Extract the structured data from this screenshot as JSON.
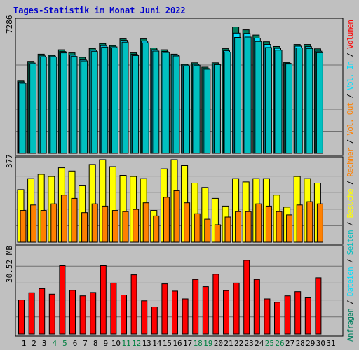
{
  "title": "Tages-Statistik im Monat Juni 2022",
  "colors": {
    "background": "#c0c0c0",
    "title": "#0000cc",
    "frame_dark": "#808080",
    "frame_light": "#ffffff",
    "grid": "#707070",
    "bar_outline": "#000000",
    "anfragen": "#008060",
    "dateien": "#00e0ff",
    "seiten": "#00c0c0",
    "besuche": "#ffff00",
    "rechner": "#ff8000",
    "volumen": "#ff0000",
    "weekend_label": "#008040",
    "weekday_label": "#000000"
  },
  "chart_data": [
    {
      "type": "bar",
      "panel": "top",
      "max_label": "7286",
      "ylim": [
        0,
        7286
      ],
      "x": [
        1,
        2,
        3,
        4,
        5,
        6,
        7,
        8,
        9,
        10,
        11,
        12,
        13,
        14,
        15,
        16,
        17,
        18,
        19,
        20,
        21,
        22,
        23,
        24,
        25,
        26,
        27,
        28,
        29,
        30,
        31
      ],
      "series": [
        {
          "name": "Anfragen",
          "color_key": "anfragen",
          "values": [
            3980,
            5060,
            5460,
            5400,
            5700,
            5530,
            5280,
            5770,
            6040,
            5930,
            6300,
            5530,
            6300,
            5800,
            5700,
            5460,
            4910,
            4980,
            4740,
            4980,
            5760,
            6960,
            6800,
            6510,
            6140,
            5880,
            5000,
            5990,
            5990,
            5750,
            0
          ]
        },
        {
          "name": "Dateien",
          "color_key": "dateien",
          "values": [
            3920,
            4970,
            5360,
            5350,
            5600,
            5400,
            5150,
            5670,
            5930,
            5860,
            6220,
            5450,
            6180,
            5700,
            5610,
            5410,
            4860,
            4900,
            4670,
            4920,
            5640,
            6620,
            6600,
            6340,
            5990,
            5780,
            4950,
            5900,
            5870,
            5620,
            0
          ]
        },
        {
          "name": "Seiten",
          "color_key": "seiten",
          "values": [
            3860,
            4920,
            5300,
            5300,
            5530,
            5330,
            5090,
            5600,
            5850,
            5800,
            6120,
            5380,
            6080,
            5630,
            5550,
            5360,
            4810,
            4850,
            4630,
            4880,
            5570,
            6380,
            6400,
            6160,
            5820,
            5680,
            4910,
            5800,
            5770,
            5540,
            0
          ]
        }
      ]
    },
    {
      "type": "bar",
      "panel": "middle",
      "max_label": "377",
      "ylim": [
        0,
        377
      ],
      "x": [
        1,
        2,
        3,
        4,
        5,
        6,
        7,
        8,
        9,
        10,
        11,
        12,
        13,
        14,
        15,
        16,
        17,
        18,
        19,
        20,
        21,
        22,
        23,
        24,
        25,
        26,
        27,
        28,
        29,
        30,
        31
      ],
      "series": [
        {
          "name": "Besuche",
          "color_key": "besuche",
          "values": [
            240,
            290,
            310,
            300,
            340,
            325,
            260,
            355,
            377,
            345,
            305,
            300,
            290,
            145,
            335,
            377,
            350,
            270,
            250,
            200,
            165,
            290,
            275,
            290,
            290,
            215,
            160,
            300,
            290,
            270,
            0
          ]
        },
        {
          "name": "Rechner",
          "color_key": "rechner",
          "values": [
            145,
            170,
            145,
            175,
            215,
            200,
            135,
            175,
            165,
            145,
            140,
            150,
            180,
            120,
            205,
            235,
            180,
            130,
            105,
            80,
            115,
            140,
            140,
            175,
            165,
            140,
            125,
            170,
            185,
            175,
            0
          ]
        }
      ]
    },
    {
      "type": "bar",
      "panel": "bottom",
      "max_label": "30.52 MB",
      "unit": "MB",
      "ylim": [
        0,
        30.52
      ],
      "x": [
        1,
        2,
        3,
        4,
        5,
        6,
        7,
        8,
        9,
        10,
        11,
        12,
        13,
        14,
        15,
        16,
        17,
        18,
        19,
        20,
        21,
        22,
        23,
        24,
        25,
        26,
        27,
        28,
        29,
        30,
        31
      ],
      "series": [
        {
          "name": "Volumen",
          "color_key": "volumen",
          "values": [
            12.2,
            14.8,
            16.3,
            14.3,
            24.6,
            15.7,
            13.7,
            14.9,
            24.6,
            18.3,
            14.0,
            21.3,
            11.9,
            9.7,
            18.0,
            15.4,
            12.6,
            19.6,
            17.0,
            21.5,
            15.6,
            18.3,
            26.5,
            19.6,
            12.6,
            11.4,
            13.7,
            15.2,
            13.0,
            20.2,
            0
          ]
        }
      ]
    }
  ],
  "legend_right": [
    {
      "text": "Anfragen",
      "color_key": "anfragen"
    },
    {
      "text": " / ",
      "color_key": "weekday_label"
    },
    {
      "text": "Dateien",
      "color_key": "dateien"
    },
    {
      "text": " / ",
      "color_key": "weekday_label"
    },
    {
      "text": "Seiten",
      "color_key": "seiten"
    },
    {
      "text": " / ",
      "color_key": "weekday_label"
    },
    {
      "text": "Besuche",
      "color_key": "besuche"
    },
    {
      "text": " / ",
      "color_key": "weekday_label"
    },
    {
      "text": "Rechner",
      "color_key": "rechner"
    },
    {
      "text": " / ",
      "color_key": "weekday_label"
    },
    {
      "text": "Vol. Out",
      "color_key": "rechner"
    },
    {
      "text": " / ",
      "color_key": "weekday_label"
    },
    {
      "text": "Vol. In",
      "color_key": "dateien"
    },
    {
      "text": " / ",
      "color_key": "weekday_label"
    },
    {
      "text": "Volumen",
      "color_key": "volumen"
    }
  ],
  "x_labels": [
    "1",
    "2",
    "3",
    "4",
    "5",
    "6",
    "7",
    "8",
    "9",
    "10",
    "11",
    "12",
    "13",
    "14",
    "15",
    "16",
    "17",
    "18",
    "19",
    "20",
    "21",
    "22",
    "23",
    "24",
    "25",
    "26",
    "27",
    "28",
    "29",
    "30",
    "31"
  ],
  "weekend_days": [
    4,
    5,
    11,
    12,
    18,
    19,
    25,
    26
  ]
}
